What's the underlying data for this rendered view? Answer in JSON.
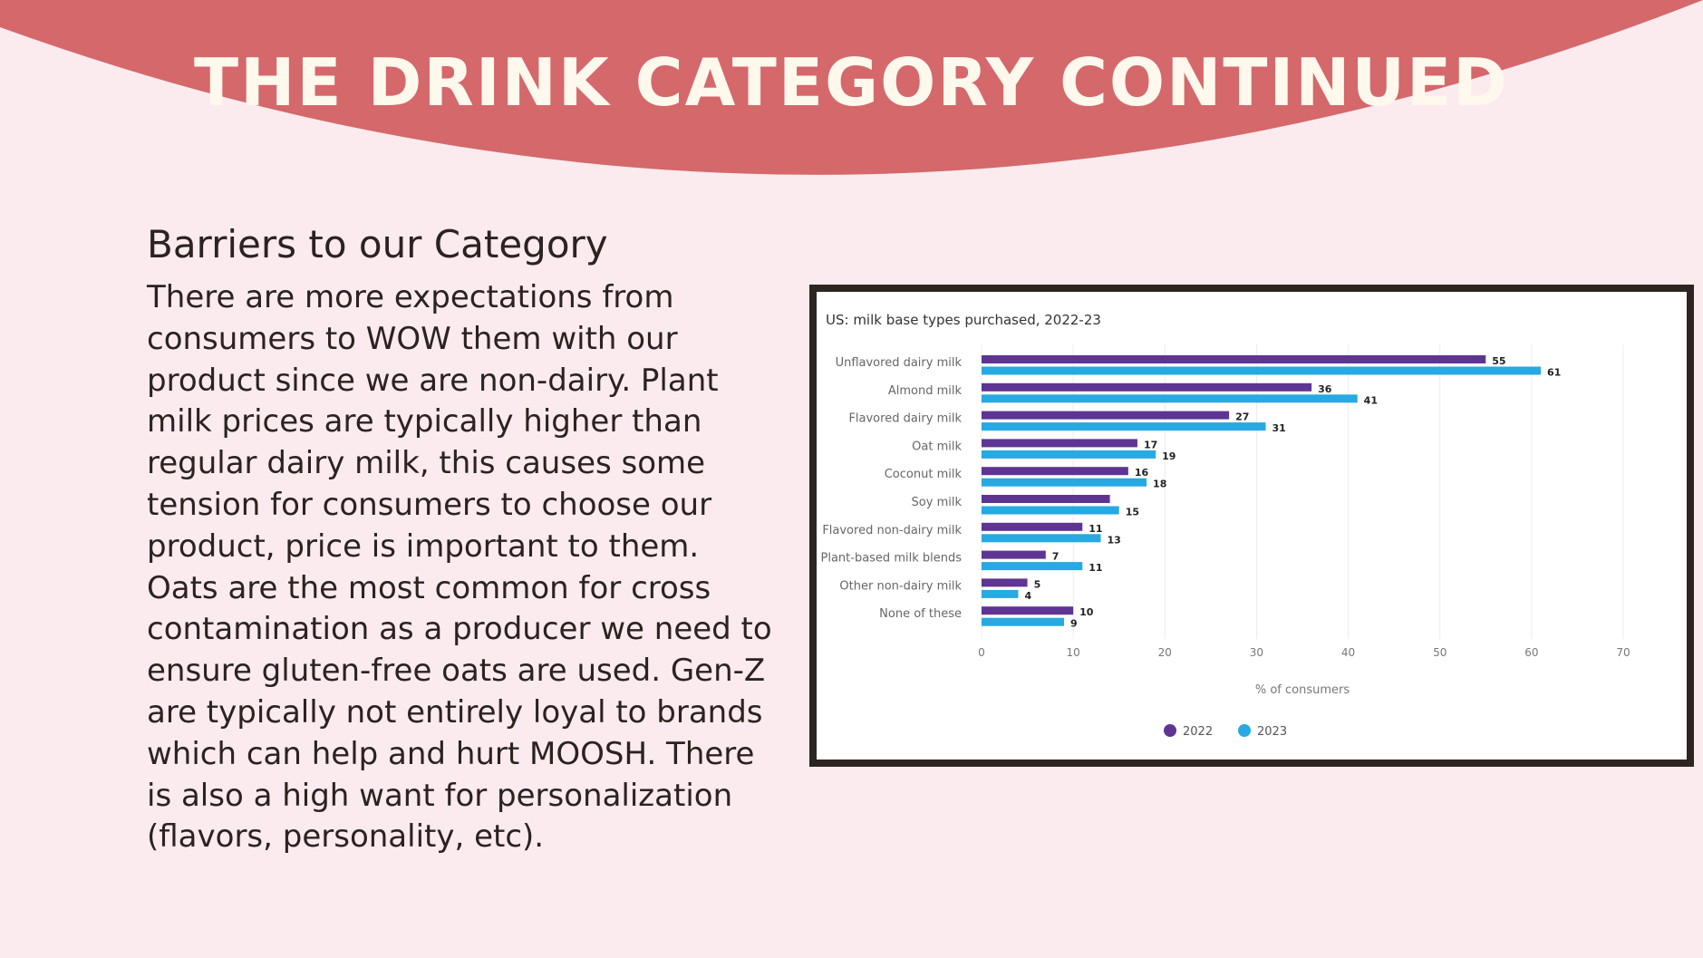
{
  "slide": {
    "title": "THE DRINK CATEGORY CONTINUED",
    "heading": "Barriers to our Category",
    "body_lines": [
      "There are more expectations from",
      "consumers to WOW them with our",
      "product since we are non-dairy. Plant",
      "milk prices are typically higher than",
      "regular dairy milk, this causes some",
      "tension for consumers to choose our",
      "product, price is important to them.",
      "Oats are the most common for cross",
      "contamination as a producer we need to",
      "ensure gluten-free oats are used. Gen-Z",
      "are typically not entirely loyal to brands",
      "which can help and hurt MOOSH. There",
      "is also a high want for personalization",
      "(flavors, personality, etc)."
    ]
  },
  "colors": {
    "background": "#fbebef",
    "banner": "#d4686b",
    "title_text": "#fff8ec",
    "series_2022": "#5e3592",
    "series_2023": "#27a9e1"
  },
  "chart_data": {
    "type": "bar",
    "orientation": "horizontal",
    "title": "US: milk base types purchased, 2022-23",
    "xlabel": "% of consumers",
    "ylabel": "",
    "xlim": [
      0,
      70
    ],
    "xticks": [
      0,
      10,
      20,
      30,
      40,
      50,
      60,
      70
    ],
    "grid": true,
    "legend_position": "bottom-center",
    "categories": [
      "Unflavored dairy milk",
      "Almond milk",
      "Flavored dairy milk",
      "Oat milk",
      "Coconut milk",
      "Soy milk",
      "Flavored non-dairy milk",
      "Plant-based milk blends",
      "Other non-dairy milk",
      "None of these"
    ],
    "series": [
      {
        "name": "2022",
        "color": "#5e3592",
        "values": [
          55,
          36,
          27,
          17,
          16,
          14,
          11,
          7,
          5,
          10
        ]
      },
      {
        "name": "2023",
        "color": "#27a9e1",
        "values": [
          61,
          41,
          31,
          19,
          18,
          15,
          13,
          11,
          4,
          9
        ]
      }
    ],
    "data_labels": {
      "2022": [
        "55",
        "36",
        "27",
        "17",
        "16",
        "",
        "11",
        "7",
        "5",
        "10"
      ],
      "2023": [
        "61",
        "41",
        "31",
        "19",
        "18",
        "15",
        "13",
        "11",
        "4",
        "9"
      ]
    }
  }
}
